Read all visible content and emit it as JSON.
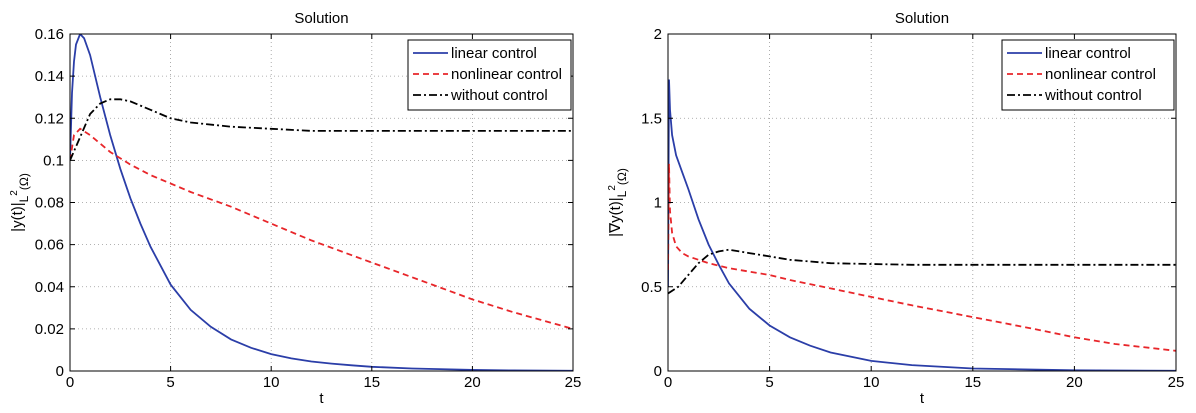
{
  "chart_data": [
    {
      "type": "line",
      "title": "Solution",
      "xlabel": "t",
      "ylabel": "|y(t)|",
      "ylabel_sub": "L",
      "ylabel_sup": "2",
      "ylabel_omega": "(Ω)",
      "xlim": [
        0,
        25
      ],
      "ylim": [
        0,
        0.16
      ],
      "xticks": [
        0,
        5,
        10,
        15,
        20,
        25
      ],
      "yticks": [
        0,
        0.02,
        0.04,
        0.06,
        0.08,
        0.1,
        0.12,
        0.14,
        0.16
      ],
      "ytick_labels": [
        "0",
        "0.02",
        "0.04",
        "0.06",
        "0.08",
        "0.1",
        "0.12",
        "0.14",
        "0.16"
      ],
      "grid": true,
      "legend_position": "top-right",
      "series": [
        {
          "name": "linear control",
          "color": "#2b3ea8",
          "style": "solid",
          "x": [
            0,
            0.1,
            0.2,
            0.3,
            0.5,
            0.7,
            1,
            1.5,
            2,
            2.5,
            3,
            3.5,
            4,
            5,
            6,
            7,
            8,
            9,
            10,
            11,
            12,
            13,
            14,
            15,
            17,
            20,
            22,
            25
          ],
          "y": [
            0.1,
            0.132,
            0.147,
            0.155,
            0.16,
            0.158,
            0.15,
            0.13,
            0.112,
            0.096,
            0.082,
            0.07,
            0.059,
            0.041,
            0.029,
            0.021,
            0.015,
            0.011,
            0.008,
            0.006,
            0.0045,
            0.0035,
            0.0027,
            0.002,
            0.0012,
            0.0005,
            0.0003,
            0.0001
          ]
        },
        {
          "name": "nonlinear control",
          "color": "#e8262a",
          "style": "dashed",
          "x": [
            0,
            0.2,
            0.5,
            1,
            2,
            3,
            4,
            5,
            6,
            8,
            10,
            12,
            14,
            16,
            18,
            20,
            22,
            25
          ],
          "y": [
            0.1,
            0.112,
            0.115,
            0.112,
            0.104,
            0.098,
            0.093,
            0.089,
            0.085,
            0.078,
            0.07,
            0.062,
            0.055,
            0.048,
            0.041,
            0.034,
            0.028,
            0.02
          ]
        },
        {
          "name": "without control",
          "color": "#000000",
          "style": "dashdot",
          "x": [
            0,
            0.5,
            1,
            1.5,
            2,
            2.5,
            3,
            4,
            5,
            6,
            8,
            10,
            12,
            15,
            20,
            25
          ],
          "y": [
            0.1,
            0.111,
            0.122,
            0.127,
            0.129,
            0.129,
            0.128,
            0.124,
            0.12,
            0.118,
            0.116,
            0.115,
            0.114,
            0.114,
            0.114,
            0.114
          ]
        }
      ]
    },
    {
      "type": "line",
      "title": "Solution",
      "xlabel": "t",
      "ylabel": "|∇y(t)|",
      "ylabel_sub": "L",
      "ylabel_sup": "2",
      "ylabel_omega": "(Ω)",
      "xlim": [
        0,
        25
      ],
      "ylim": [
        0,
        2
      ],
      "xticks": [
        0,
        5,
        10,
        15,
        20,
        25
      ],
      "yticks": [
        0,
        0.5,
        1,
        1.5,
        2
      ],
      "ytick_labels": [
        "0",
        "0.5",
        "1",
        "1.5",
        "2"
      ],
      "grid": true,
      "legend_position": "top-right",
      "series": [
        {
          "name": "linear control",
          "color": "#2b3ea8",
          "style": "solid",
          "x": [
            0,
            0.05,
            0.1,
            0.2,
            0.4,
            0.7,
            1,
            1.5,
            2,
            2.5,
            3,
            4,
            5,
            6,
            7,
            8,
            10,
            12,
            15,
            20,
            25
          ],
          "y": [
            0.5,
            1.73,
            1.55,
            1.4,
            1.28,
            1.18,
            1.08,
            0.9,
            0.75,
            0.63,
            0.52,
            0.37,
            0.27,
            0.2,
            0.15,
            0.11,
            0.06,
            0.035,
            0.015,
            0.004,
            0.001
          ]
        },
        {
          "name": "nonlinear control",
          "color": "#e8262a",
          "style": "dashed",
          "x": [
            0,
            0.05,
            0.1,
            0.2,
            0.4,
            0.7,
            1,
            1.5,
            2,
            3,
            4,
            5,
            6,
            8,
            10,
            12,
            15,
            18,
            20,
            22,
            25
          ],
          "y": [
            0.6,
            1.23,
            0.95,
            0.82,
            0.74,
            0.7,
            0.68,
            0.66,
            0.64,
            0.61,
            0.59,
            0.57,
            0.54,
            0.49,
            0.44,
            0.39,
            0.32,
            0.25,
            0.2,
            0.16,
            0.12
          ]
        },
        {
          "name": "without control",
          "color": "#000000",
          "style": "dashdot",
          "x": [
            0,
            0.5,
            1,
            1.5,
            2,
            2.5,
            3,
            4,
            5,
            6,
            8,
            10,
            12,
            15,
            20,
            25
          ],
          "y": [
            0.46,
            0.5,
            0.57,
            0.64,
            0.69,
            0.71,
            0.72,
            0.7,
            0.68,
            0.66,
            0.64,
            0.635,
            0.63,
            0.63,
            0.63,
            0.63
          ]
        }
      ]
    }
  ]
}
